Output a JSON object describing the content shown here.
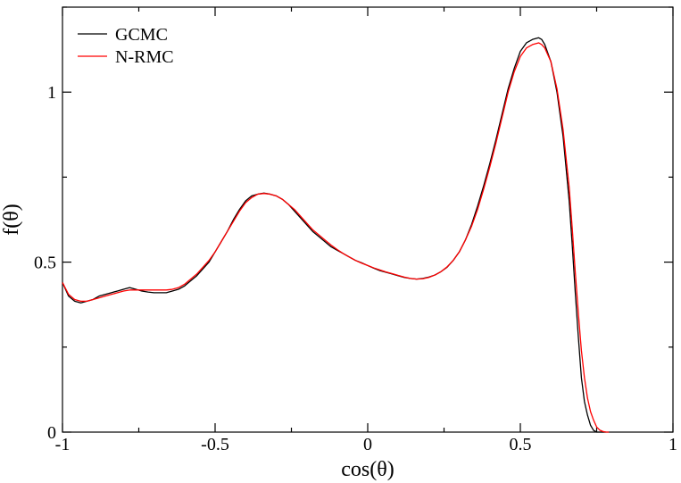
{
  "chart_data": {
    "type": "line",
    "title": "",
    "xlabel": "cos(θ)",
    "ylabel": "f(θ)",
    "xlim": [
      -1,
      1
    ],
    "ylim": [
      0,
      1.25
    ],
    "x_ticks": [
      -1,
      -0.5,
      0,
      0.5,
      1
    ],
    "x_tick_labels": [
      "-1",
      "-0.5",
      "0",
      "0.5",
      "1"
    ],
    "y_ticks": [
      0,
      0.5,
      1
    ],
    "y_tick_labels": [
      "0",
      "0.5",
      "1"
    ],
    "grid": false,
    "legend_position": "top-left",
    "series": [
      {
        "name": "GCMC",
        "color": "#000000",
        "x": [
          -1.0,
          -0.98,
          -0.96,
          -0.94,
          -0.92,
          -0.9,
          -0.88,
          -0.86,
          -0.84,
          -0.82,
          -0.8,
          -0.78,
          -0.76,
          -0.74,
          -0.72,
          -0.7,
          -0.68,
          -0.66,
          -0.64,
          -0.62,
          -0.6,
          -0.58,
          -0.56,
          -0.54,
          -0.52,
          -0.5,
          -0.48,
          -0.46,
          -0.44,
          -0.42,
          -0.4,
          -0.38,
          -0.36,
          -0.34,
          -0.32,
          -0.3,
          -0.28,
          -0.26,
          -0.24,
          -0.22,
          -0.2,
          -0.18,
          -0.16,
          -0.14,
          -0.12,
          -0.1,
          -0.08,
          -0.06,
          -0.04,
          -0.02,
          0.0,
          0.02,
          0.04,
          0.06,
          0.08,
          0.1,
          0.12,
          0.14,
          0.16,
          0.18,
          0.2,
          0.22,
          0.24,
          0.26,
          0.28,
          0.3,
          0.32,
          0.34,
          0.36,
          0.38,
          0.4,
          0.42,
          0.44,
          0.46,
          0.48,
          0.5,
          0.52,
          0.54,
          0.56,
          0.57,
          0.58,
          0.6,
          0.62,
          0.64,
          0.66,
          0.67,
          0.68,
          0.69,
          0.7,
          0.71,
          0.72,
          0.73,
          0.74,
          0.75,
          0.76,
          0.77,
          0.78
        ],
        "y": [
          0.44,
          0.4,
          0.385,
          0.38,
          0.385,
          0.39,
          0.4,
          0.405,
          0.41,
          0.415,
          0.42,
          0.425,
          0.42,
          0.415,
          0.412,
          0.41,
          0.41,
          0.41,
          0.415,
          0.42,
          0.43,
          0.445,
          0.46,
          0.48,
          0.5,
          0.53,
          0.56,
          0.59,
          0.625,
          0.655,
          0.68,
          0.695,
          0.7,
          0.703,
          0.7,
          0.695,
          0.685,
          0.67,
          0.65,
          0.63,
          0.61,
          0.59,
          0.575,
          0.56,
          0.545,
          0.535,
          0.525,
          0.515,
          0.505,
          0.498,
          0.49,
          0.482,
          0.475,
          0.47,
          0.465,
          0.46,
          0.455,
          0.452,
          0.45,
          0.452,
          0.456,
          0.462,
          0.472,
          0.485,
          0.505,
          0.53,
          0.565,
          0.61,
          0.665,
          0.725,
          0.79,
          0.86,
          0.935,
          1.01,
          1.07,
          1.12,
          1.145,
          1.155,
          1.16,
          1.155,
          1.14,
          1.09,
          1.0,
          0.87,
          0.68,
          0.55,
          0.41,
          0.28,
          0.16,
          0.09,
          0.05,
          0.02,
          0.005,
          0.0,
          0.0,
          0.0,
          0.0
        ]
      },
      {
        "name": "N-RMC",
        "color": "#ff0000",
        "x": [
          -1.0,
          -0.98,
          -0.96,
          -0.94,
          -0.92,
          -0.9,
          -0.88,
          -0.86,
          -0.84,
          -0.82,
          -0.8,
          -0.78,
          -0.76,
          -0.74,
          -0.72,
          -0.7,
          -0.68,
          -0.66,
          -0.64,
          -0.62,
          -0.6,
          -0.58,
          -0.56,
          -0.54,
          -0.52,
          -0.5,
          -0.48,
          -0.46,
          -0.44,
          -0.42,
          -0.4,
          -0.38,
          -0.36,
          -0.34,
          -0.32,
          -0.3,
          -0.28,
          -0.26,
          -0.24,
          -0.22,
          -0.2,
          -0.18,
          -0.16,
          -0.14,
          -0.12,
          -0.1,
          -0.08,
          -0.06,
          -0.04,
          -0.02,
          0.0,
          0.02,
          0.04,
          0.06,
          0.08,
          0.1,
          0.12,
          0.14,
          0.16,
          0.18,
          0.2,
          0.22,
          0.24,
          0.26,
          0.28,
          0.3,
          0.32,
          0.34,
          0.36,
          0.38,
          0.4,
          0.42,
          0.44,
          0.46,
          0.48,
          0.5,
          0.52,
          0.54,
          0.56,
          0.57,
          0.58,
          0.6,
          0.62,
          0.64,
          0.66,
          0.67,
          0.68,
          0.69,
          0.7,
          0.71,
          0.72,
          0.73,
          0.74,
          0.75,
          0.76,
          0.77,
          0.78,
          0.79
        ],
        "y": [
          0.44,
          0.405,
          0.39,
          0.385,
          0.385,
          0.39,
          0.395,
          0.4,
          0.405,
          0.41,
          0.415,
          0.418,
          0.418,
          0.418,
          0.418,
          0.418,
          0.418,
          0.418,
          0.42,
          0.425,
          0.435,
          0.45,
          0.465,
          0.485,
          0.505,
          0.53,
          0.56,
          0.59,
          0.62,
          0.65,
          0.675,
          0.69,
          0.7,
          0.702,
          0.7,
          0.695,
          0.685,
          0.67,
          0.655,
          0.635,
          0.615,
          0.595,
          0.58,
          0.565,
          0.55,
          0.537,
          0.525,
          0.515,
          0.505,
          0.497,
          0.49,
          0.483,
          0.477,
          0.471,
          0.466,
          0.461,
          0.456,
          0.452,
          0.45,
          0.451,
          0.455,
          0.462,
          0.472,
          0.486,
          0.505,
          0.53,
          0.565,
          0.605,
          0.655,
          0.715,
          0.78,
          0.85,
          0.925,
          1.0,
          1.06,
          1.105,
          1.13,
          1.14,
          1.145,
          1.14,
          1.13,
          1.09,
          1.01,
          0.89,
          0.72,
          0.6,
          0.47,
          0.35,
          0.24,
          0.16,
          0.1,
          0.06,
          0.035,
          0.015,
          0.006,
          0.002,
          0.0,
          0.0
        ]
      }
    ]
  }
}
